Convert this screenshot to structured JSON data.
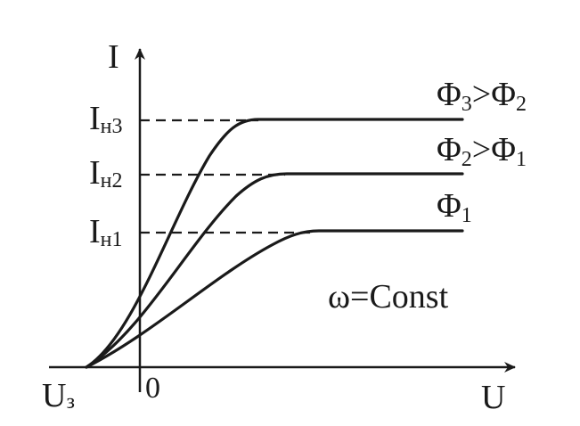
{
  "axes": {
    "y_label": "I",
    "x_label": "U",
    "origin_label": "0",
    "cutoff_label": {
      "main": "U",
      "sub": "з"
    }
  },
  "levels": [
    {
      "main": "I",
      "sub": "н3"
    },
    {
      "main": "I",
      "sub": "н2"
    },
    {
      "main": "I",
      "sub": "н1"
    }
  ],
  "curves": [
    {
      "main": "Φ",
      "sub": "3",
      "rel": ">Φ",
      "rel_sub": "2"
    },
    {
      "main": "Φ",
      "sub": "2",
      "rel": ">Φ",
      "rel_sub": "1"
    },
    {
      "main": "Φ",
      "sub": "1",
      "rel": "",
      "rel_sub": ""
    }
  ],
  "condition": "ω=Const"
}
